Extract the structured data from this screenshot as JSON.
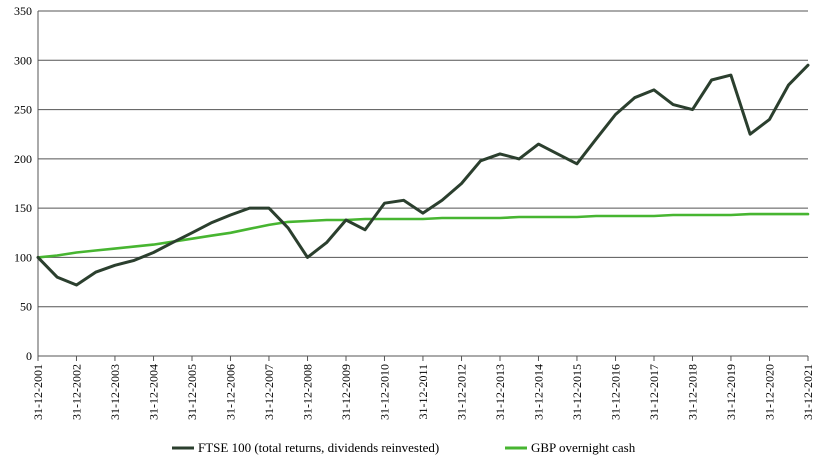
{
  "chart_data": {
    "type": "line",
    "title": "",
    "xlabel": "",
    "ylabel": "",
    "ylim": [
      0,
      350
    ],
    "yticks": [
      0,
      50,
      100,
      150,
      200,
      250,
      300,
      350
    ],
    "grid": "horizontal",
    "legend_position": "bottom",
    "x_tick_labels": [
      "31-12-2001",
      "31-12-2002",
      "31-12-2003",
      "31-12-2004",
      "31-12-2005",
      "31-12-2006",
      "31-12-2007",
      "31-12-2008",
      "31-12-2009",
      "31-12-2010",
      "31-12-2011",
      "31-12-2012",
      "31-12-2013",
      "31-12-2014",
      "31-12-2015",
      "31-12-2016",
      "31-12-2017",
      "31-12-2018",
      "31-12-2019",
      "31-12-2020",
      "31-12-2021"
    ],
    "x": [
      "31-12-2001",
      "30-06-2002",
      "31-12-2002",
      "30-06-2003",
      "31-12-2003",
      "30-06-2004",
      "31-12-2004",
      "30-06-2005",
      "31-12-2005",
      "30-06-2006",
      "31-12-2006",
      "30-06-2007",
      "31-12-2007",
      "30-06-2008",
      "31-12-2008",
      "30-06-2009",
      "31-12-2009",
      "30-06-2010",
      "31-12-2010",
      "30-06-2011",
      "31-12-2011",
      "30-06-2012",
      "31-12-2012",
      "30-06-2013",
      "31-12-2013",
      "30-06-2014",
      "31-12-2014",
      "30-06-2015",
      "31-12-2015",
      "30-06-2016",
      "31-12-2016",
      "30-06-2017",
      "31-12-2017",
      "30-06-2018",
      "31-12-2018",
      "30-06-2019",
      "31-12-2019",
      "30-06-2020",
      "31-12-2020",
      "30-06-2021",
      "31-12-2021"
    ],
    "series": [
      {
        "name": "FTSE 100 (total returns, dividends reinvested)",
        "color": "#2b3f2e",
        "values": [
          100,
          80,
          72,
          85,
          92,
          97,
          105,
          115,
          125,
          135,
          143,
          150,
          150,
          130,
          100,
          115,
          138,
          128,
          155,
          158,
          145,
          158,
          175,
          198,
          205,
          200,
          215,
          205,
          195,
          220,
          245,
          262,
          270,
          255,
          250,
          280,
          285,
          225,
          240,
          275,
          295
        ]
      },
      {
        "name": "GBP overnight cash",
        "color": "#47b531",
        "values": [
          100,
          102,
          105,
          107,
          109,
          111,
          113,
          116,
          119,
          122,
          125,
          129,
          133,
          136,
          137,
          138,
          138,
          139,
          139,
          139,
          139,
          140,
          140,
          140,
          140,
          141,
          141,
          141,
          141,
          142,
          142,
          142,
          142,
          143,
          143,
          143,
          143,
          144,
          144,
          144,
          144
        ]
      }
    ]
  }
}
